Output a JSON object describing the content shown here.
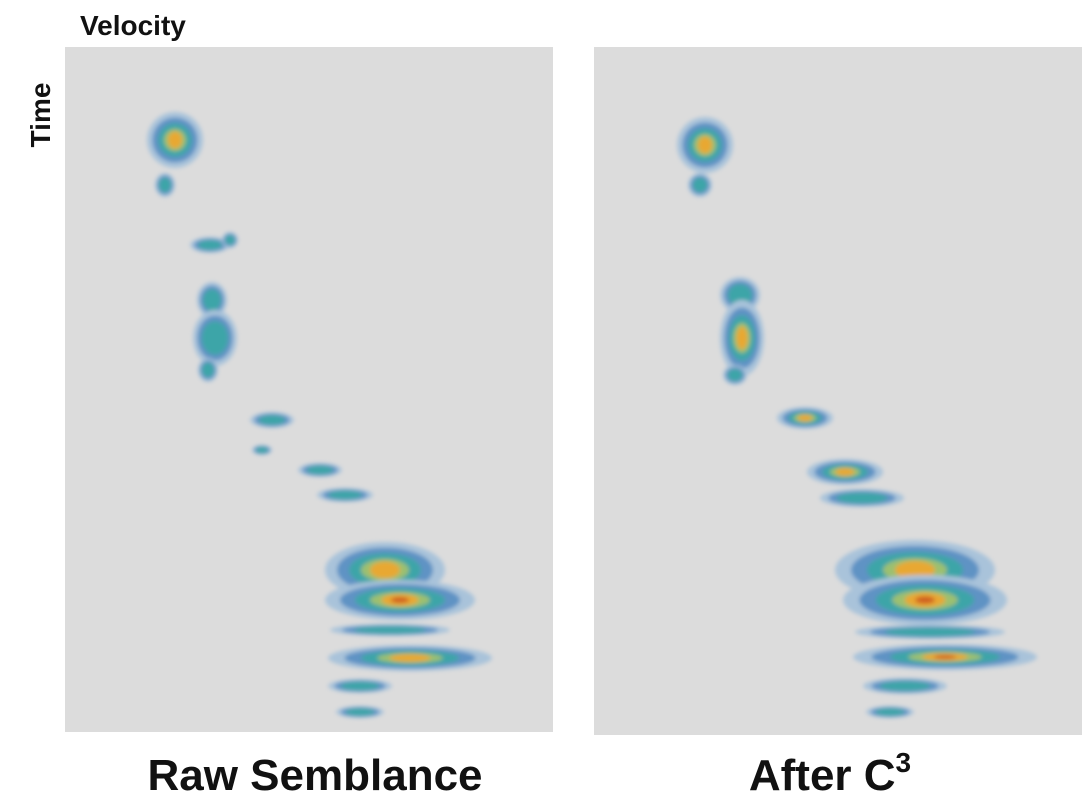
{
  "figure": {
    "axis_labels": {
      "x": "Velocity",
      "y": "Time"
    },
    "panels": [
      {
        "title": "Raw Semblance"
      },
      {
        "title": "After C",
        "title_superscript": "3"
      }
    ]
  }
}
